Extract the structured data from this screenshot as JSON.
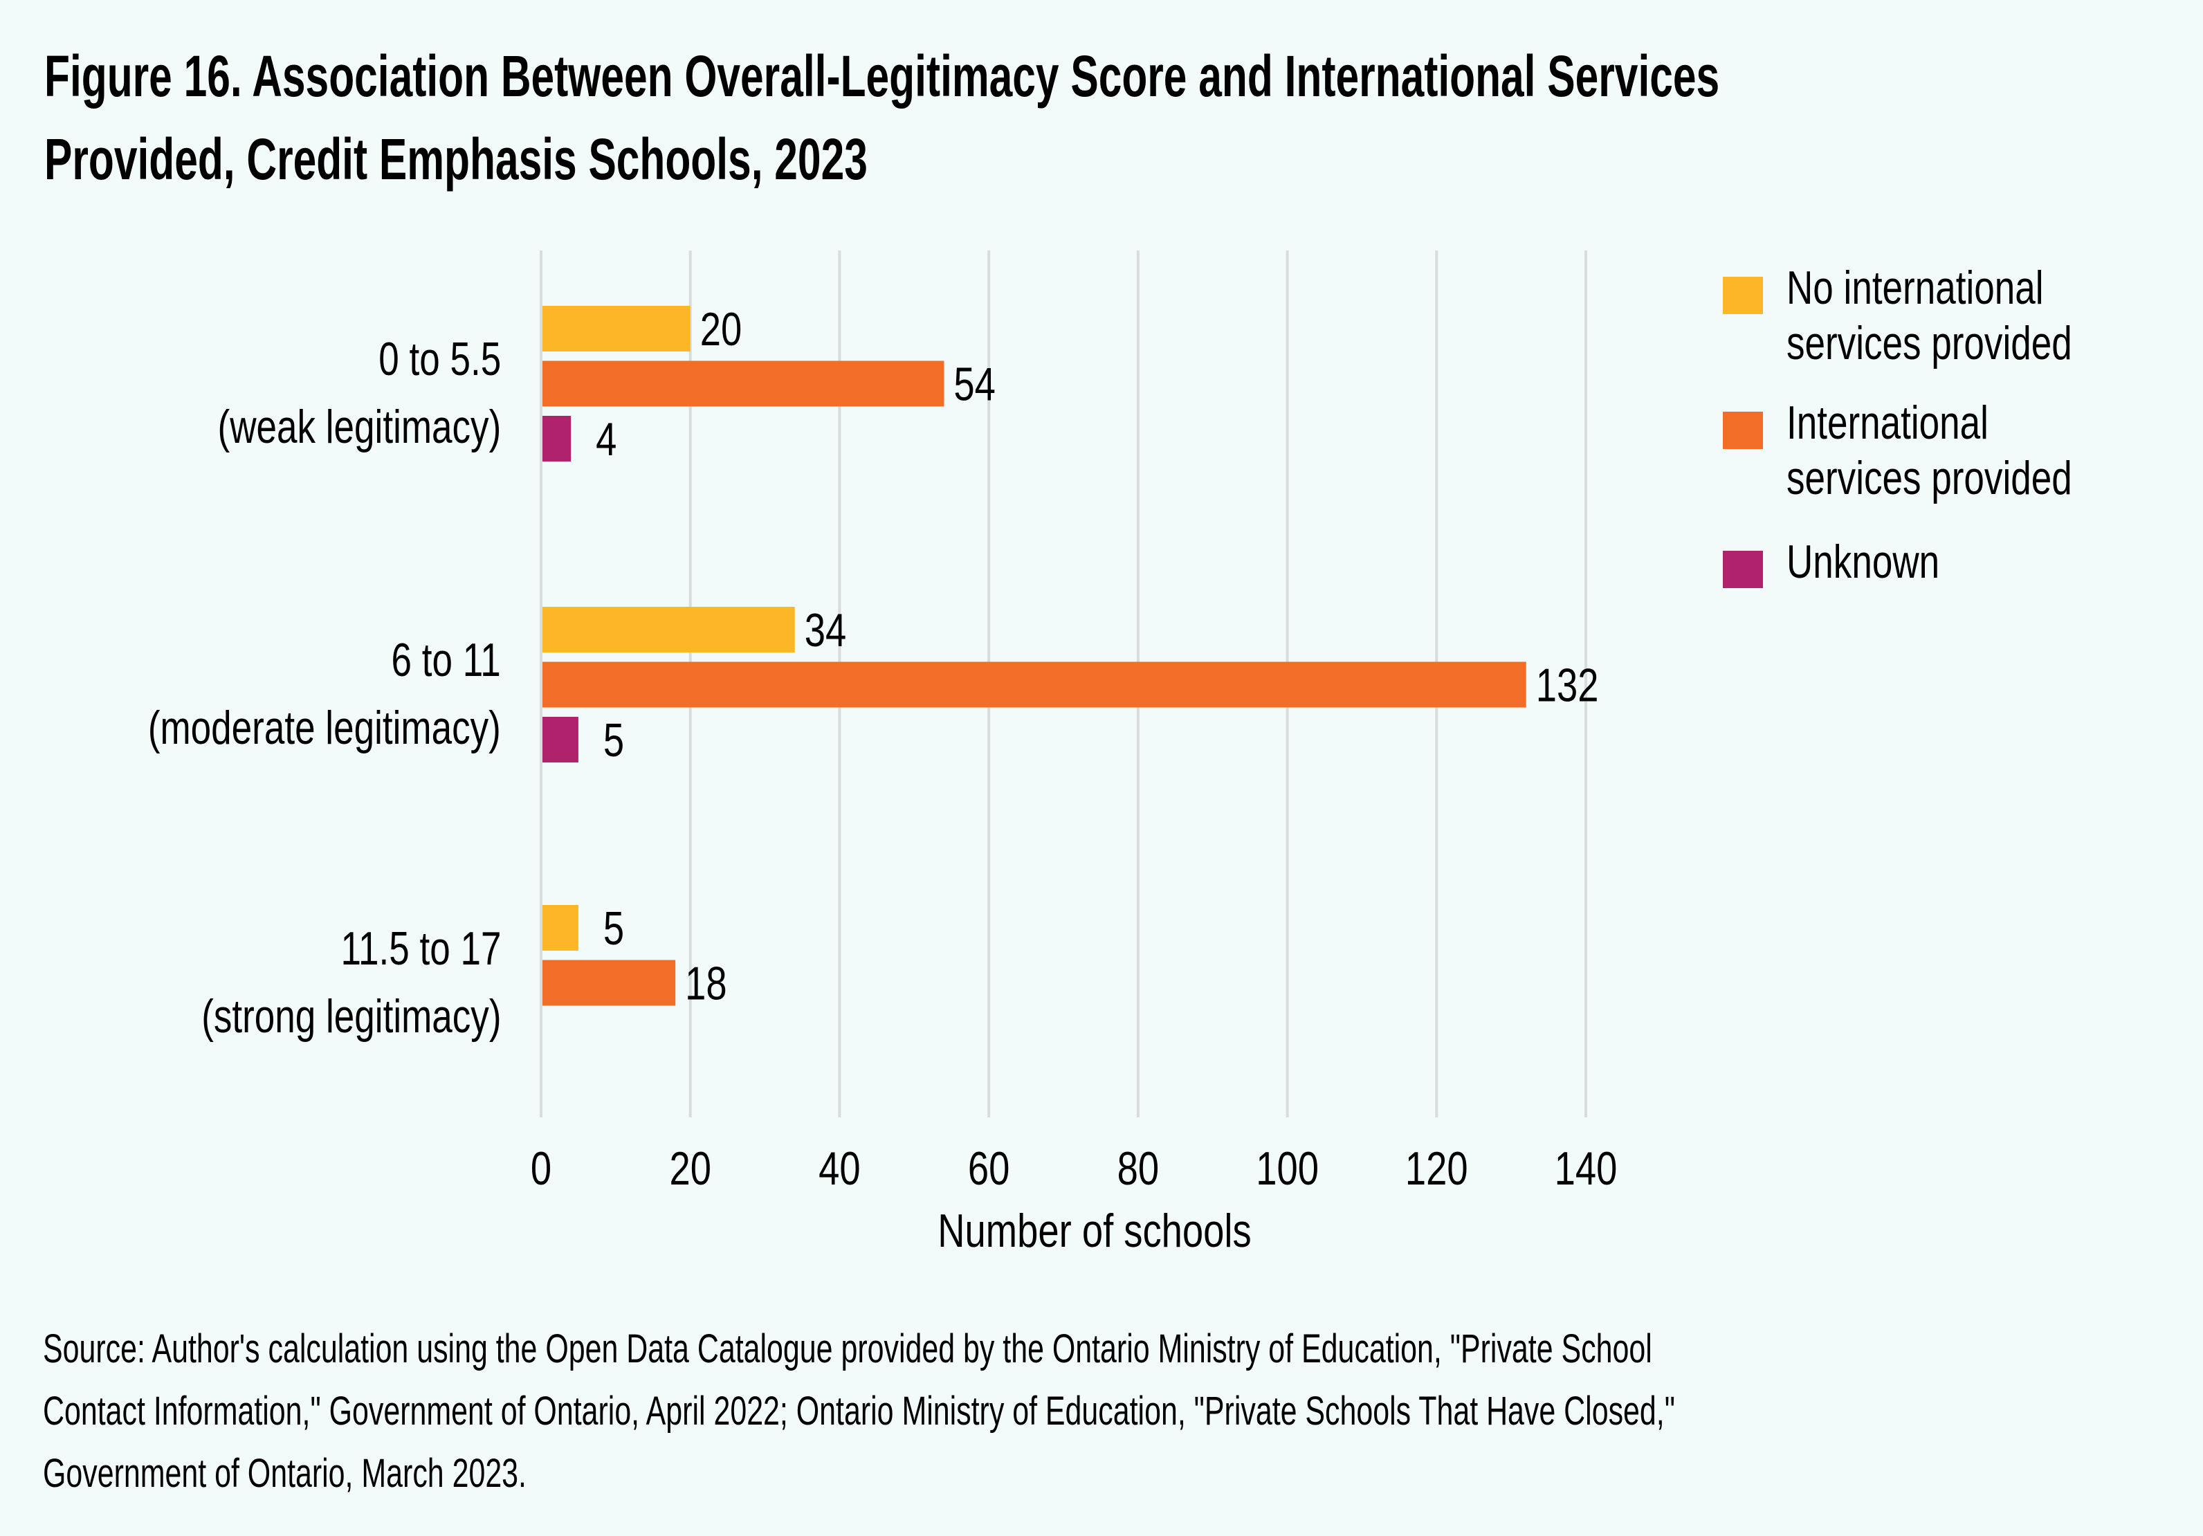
{
  "title_lines": [
    "Figure 16. Association Between Overall-Legitimacy Score and International Services",
    "Provided, Credit Emphasis Schools, 2023"
  ],
  "source_lines": [
    "Source: Author's calculation using the Open Data Catalogue provided by the Ontario Ministry of Education, \"Private School",
    "Contact Information,\" Government of Ontario, April 2022; Ontario Ministry of Education, \"Private Schools That Have Closed,\"",
    "Government of Ontario, March 2023."
  ],
  "chart_data": {
    "type": "bar",
    "orientation": "horizontal",
    "title": "Figure 16. Association Between Overall-Legitimacy Score and International Services Provided, Credit Emphasis Schools, 2023",
    "categories": [
      {
        "line1": "0 to 5.5",
        "line2": "(weak legitimacy)"
      },
      {
        "line1": "6 to 11",
        "line2": "(moderate legitimacy)"
      },
      {
        "line1": "11.5 to 17",
        "line2": "(strong legitimacy)"
      }
    ],
    "series": [
      {
        "name": "No international services provided",
        "legend_lines": [
          "No international",
          "services provided"
        ],
        "color": "#fdb627",
        "values": [
          20,
          34,
          5
        ]
      },
      {
        "name": "International services provided",
        "legend_lines": [
          "International",
          "services provided"
        ],
        "color": "#f26d28",
        "values": [
          54,
          132,
          18
        ]
      },
      {
        "name": "Unknown",
        "legend_lines": [
          "Unknown"
        ],
        "color": "#b0226c",
        "values": [
          4,
          5,
          null
        ]
      }
    ],
    "xlabel": "Number of schools",
    "ylabel": "",
    "xlim": [
      0,
      140
    ],
    "xticks": [
      0,
      20,
      40,
      60,
      80,
      100,
      120,
      140
    ],
    "grid": true,
    "legend_position": "top-right",
    "data_labels": true
  }
}
